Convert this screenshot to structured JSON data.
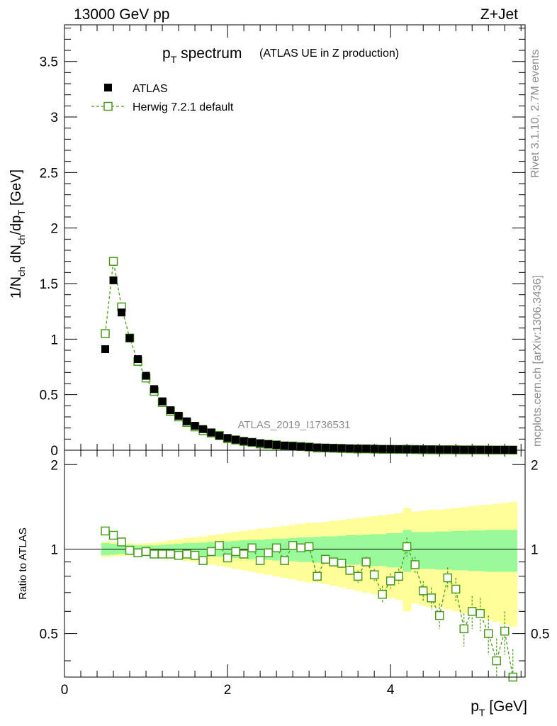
{
  "header": {
    "energy_label": "13000 GeV pp",
    "process_label": "Z+Jet"
  },
  "side_labels": {
    "rivet": "Rivet 3.1.10,  2.7M events",
    "mcplots": "mcplots.cern.ch [arXiv:1306.3436]"
  },
  "analysis_label": "ATLAS_2019_I1736531",
  "colors": {
    "data": "#000000",
    "mc": "#4a9a1c",
    "band_inner": "#98fa98",
    "band_outer": "#fffe98"
  },
  "chart_data": [
    {
      "type": "scatter",
      "title": "p_T spectrum",
      "title_main": "p",
      "title_sub": "T",
      "title_rest": " spectrum",
      "subtitle": "(ATLAS UE in Z production)",
      "ylabel": "1/N_ch dN_ch/dp_T [GeV]",
      "ylabel_parts": {
        "a": "1/N",
        "b": "ch",
        "c": " dN",
        "d": "ch",
        "e": "/dp",
        "f": "T",
        "g": " [GeV]"
      },
      "xlim": [
        0,
        5.65
      ],
      "ylim": [
        0,
        3.83
      ],
      "y_ticks": [
        "0",
        "0.5",
        "1",
        "1.5",
        "2",
        "2.5",
        "3",
        "3.5"
      ],
      "y_tick_values": [
        0,
        0.5,
        1,
        1.5,
        2,
        2.5,
        3,
        3.5
      ],
      "legend": [
        {
          "label": "ATLAS"
        },
        {
          "label": "Herwig 7.2.1 default"
        }
      ],
      "x": [
        0.5,
        0.6,
        0.7,
        0.8,
        0.9,
        1.0,
        1.1,
        1.2,
        1.3,
        1.4,
        1.5,
        1.6,
        1.7,
        1.8,
        1.9,
        2.0,
        2.1,
        2.2,
        2.3,
        2.4,
        2.5,
        2.6,
        2.7,
        2.8,
        2.9,
        3.0,
        3.1,
        3.2,
        3.3,
        3.4,
        3.5,
        3.6,
        3.7,
        3.8,
        3.9,
        4.0,
        4.1,
        4.2,
        4.3,
        4.4,
        4.5,
        4.6,
        4.7,
        4.8,
        4.9,
        5.0,
        5.1,
        5.2,
        5.3,
        5.4,
        5.5
      ],
      "series": [
        {
          "name": "ATLAS",
          "values": [
            0.91,
            1.53,
            1.24,
            1.01,
            0.82,
            0.67,
            0.55,
            0.44,
            0.36,
            0.31,
            0.26,
            0.22,
            0.19,
            0.16,
            0.13,
            0.11,
            0.095,
            0.082,
            0.072,
            0.063,
            0.055,
            0.048,
            0.042,
            0.037,
            0.032,
            0.028,
            0.025,
            0.022,
            0.02,
            0.018,
            0.016,
            0.014,
            0.013,
            0.012,
            0.011,
            0.01,
            0.009,
            0.008,
            0.0075,
            0.007,
            0.0065,
            0.006,
            0.0055,
            0.005,
            0.0048,
            0.0045,
            0.0042,
            0.004,
            0.0038,
            0.0035,
            0.0033
          ]
        },
        {
          "name": "Herwig 7.2.1 default",
          "values": [
            1.05,
            1.7,
            1.29,
            1.01,
            0.8,
            0.65,
            0.53,
            0.43,
            0.35,
            0.3,
            0.25,
            0.21,
            0.175,
            0.155,
            0.133,
            0.103,
            0.092,
            0.079,
            0.071,
            0.057,
            0.053,
            0.048,
            0.038,
            0.038,
            0.033,
            0.029,
            0.02,
            0.02,
            0.018,
            0.016,
            0.013,
            0.011,
            0.012,
            0.01,
            0.0075,
            0.0079,
            0.0073,
            0.0083,
            0.0066,
            0.005,
            0.0044,
            0.0035,
            0.0043,
            0.0036,
            0.0025,
            0.0027,
            0.0025,
            0.002,
            0.0015,
            0.0018,
            0.0012
          ]
        }
      ]
    },
    {
      "type": "scatter",
      "ylabel": "Ratio to ATLAS",
      "xlabel": "p_T [GeV]",
      "xlabel_main": "p",
      "xlabel_sub": "T",
      "xlabel_rest": " [GeV]",
      "xlim": [
        0,
        5.65
      ],
      "ylim": [
        0.35,
        2.25
      ],
      "x_ticks": [
        "0",
        "2",
        "4"
      ],
      "x_tick_values": [
        0,
        2,
        4
      ],
      "y_ticks": [
        "0.5",
        "1",
        "2"
      ],
      "y_tick_values": [
        0.5,
        1,
        2
      ],
      "reference_line": 1,
      "x": [
        0.5,
        0.6,
        0.7,
        0.8,
        0.9,
        1.0,
        1.1,
        1.2,
        1.3,
        1.4,
        1.5,
        1.6,
        1.7,
        1.8,
        1.9,
        2.0,
        2.1,
        2.2,
        2.3,
        2.4,
        2.5,
        2.6,
        2.7,
        2.8,
        2.9,
        3.0,
        3.1,
        3.2,
        3.3,
        3.4,
        3.5,
        3.6,
        3.7,
        3.8,
        3.9,
        4.0,
        4.1,
        4.2,
        4.3,
        4.4,
        4.5,
        4.6,
        4.7,
        4.8,
        4.9,
        5.0,
        5.1,
        5.2,
        5.3,
        5.4,
        5.5
      ],
      "ratio": [
        1.16,
        1.12,
        1.06,
        0.99,
        0.97,
        0.98,
        0.96,
        0.96,
        0.96,
        0.95,
        0.96,
        0.95,
        0.91,
        0.98,
        1.03,
        0.93,
        0.98,
        0.96,
        1.01,
        0.91,
        0.97,
        1.01,
        0.91,
        1.03,
        1.01,
        1.02,
        0.8,
        0.92,
        0.9,
        0.89,
        0.84,
        0.8,
        0.9,
        0.81,
        0.69,
        0.77,
        0.8,
        1.02,
        0.88,
        0.71,
        0.67,
        0.58,
        0.79,
        0.72,
        0.52,
        0.6,
        0.59,
        0.5,
        0.4,
        0.51,
        0.35
      ],
      "ratio_err": [
        0.01,
        0.01,
        0.01,
        0.01,
        0.01,
        0.01,
        0.01,
        0.01,
        0.01,
        0.01,
        0.01,
        0.01,
        0.015,
        0.015,
        0.015,
        0.015,
        0.015,
        0.02,
        0.02,
        0.02,
        0.02,
        0.02,
        0.02,
        0.02,
        0.025,
        0.025,
        0.03,
        0.03,
        0.03,
        0.035,
        0.035,
        0.04,
        0.04,
        0.04,
        0.05,
        0.05,
        0.05,
        0.08,
        0.06,
        0.06,
        0.06,
        0.06,
        0.07,
        0.07,
        0.07,
        0.08,
        0.08,
        0.08,
        0.08,
        0.09,
        0.09
      ],
      "band_inner": [
        0.05,
        0.045,
        0.04,
        0.035,
        0.03,
        0.03,
        0.03,
        0.035,
        0.04,
        0.045,
        0.05,
        0.05,
        0.055,
        0.06,
        0.06,
        0.065,
        0.07,
        0.075,
        0.08,
        0.08,
        0.085,
        0.09,
        0.09,
        0.095,
        0.1,
        0.1,
        0.105,
        0.11,
        0.11,
        0.115,
        0.12,
        0.12,
        0.125,
        0.13,
        0.13,
        0.14,
        0.14,
        0.17,
        0.15,
        0.15,
        0.15,
        0.155,
        0.155,
        0.16,
        0.16,
        0.165,
        0.165,
        0.17,
        0.17,
        0.17,
        0.17
      ],
      "band_outer": [
        0.065,
        0.06,
        0.055,
        0.05,
        0.045,
        0.05,
        0.055,
        0.065,
        0.075,
        0.085,
        0.095,
        0.1,
        0.11,
        0.12,
        0.13,
        0.14,
        0.15,
        0.16,
        0.17,
        0.18,
        0.19,
        0.2,
        0.21,
        0.22,
        0.23,
        0.24,
        0.24,
        0.25,
        0.26,
        0.27,
        0.28,
        0.29,
        0.3,
        0.31,
        0.32,
        0.33,
        0.34,
        0.4,
        0.36,
        0.37,
        0.38,
        0.38,
        0.39,
        0.4,
        0.41,
        0.42,
        0.43,
        0.44,
        0.45,
        0.46,
        0.47
      ]
    }
  ]
}
